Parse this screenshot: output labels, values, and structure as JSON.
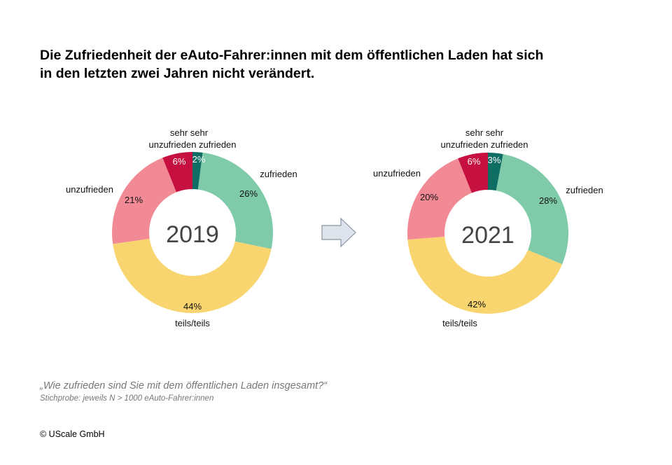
{
  "title_lines": [
    "Die Zufriedenheit der eAuto-Fahrer:innen mit dem öffentlichen Laden hat sich",
    "in den letzten zwei Jahren nicht verändert."
  ],
  "question": "„Wie zufrieden sind Sie mit dem öffentlichen Laden insgesamt?“",
  "sample": "Stichprobe: jeweils N > 1000 eAuto-Fahrer:innen",
  "copyright": "© UScale GmbH",
  "colors": {
    "sehr zufrieden": "#0e6e63",
    "zufrieden": "#7ecaa9",
    "teils/teils": "#f8d56f",
    "unzufrieden": "#f28a96",
    "sehr unzufrieden": "#c6103f",
    "arrow": "#dfe4ec"
  },
  "chart_data": [
    {
      "type": "pie",
      "subtype": "donut",
      "center_label": "2019",
      "categories": [
        "sehr zufrieden",
        "zufrieden",
        "teils/teils",
        "unzufrieden",
        "sehr unzufrieden"
      ],
      "values": [
        2,
        26,
        44,
        21,
        6
      ],
      "value_labels": [
        "2%",
        "26%",
        "44%",
        "21%",
        "6%"
      ]
    },
    {
      "type": "pie",
      "subtype": "donut",
      "center_label": "2021",
      "categories": [
        "sehr zufrieden",
        "zufrieden",
        "teils/teils",
        "unzufrieden",
        "sehr unzufrieden"
      ],
      "values": [
        3,
        28,
        42,
        20,
        6
      ],
      "value_labels": [
        "3%",
        "28%",
        "42%",
        "20%",
        "6%"
      ]
    }
  ],
  "category_labels": {
    "sehr_line1": "sehr sehr",
    "sehr_line2": "unzufrieden zufrieden",
    "zufrieden": "zufrieden",
    "unzufrieden": "unzufrieden",
    "teils": "teils/teils"
  }
}
